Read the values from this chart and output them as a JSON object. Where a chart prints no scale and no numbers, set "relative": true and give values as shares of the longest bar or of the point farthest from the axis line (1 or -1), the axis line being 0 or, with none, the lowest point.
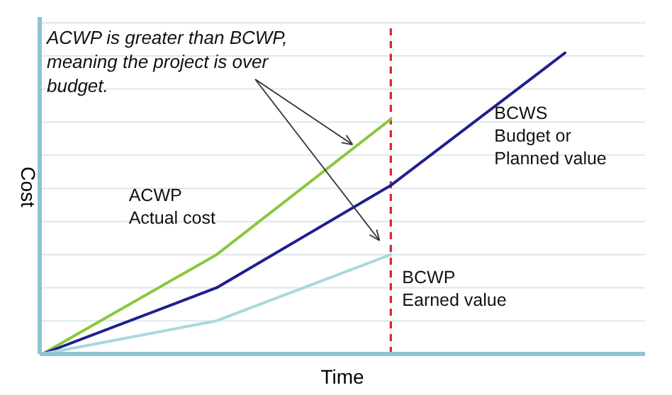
{
  "chart_data": {
    "type": "line",
    "xlabel": "Time",
    "ylabel": "Cost",
    "relative": true,
    "categories": [
      null,
      null,
      null,
      null
    ],
    "grid": "y",
    "marker": "none",
    "line_style": "solid",
    "series": [
      {
        "name": "ACWP\nActual cost",
        "color": "#8cc63f",
        "values": [
          0,
          0.33,
          0.78,
          null
        ]
      },
      {
        "name": "BCWS\nBudget or\nPlanned value",
        "color": "#1f1f8f",
        "values": [
          0,
          0.22,
          0.56,
          1
        ]
      },
      {
        "name": "BCWP\nEarned value",
        "color": "#a8d8dc",
        "values": [
          0,
          0.11,
          0.33,
          null
        ]
      }
    ],
    "annotations": [
      "ACWP is greater than BCWP, meaning the project is over budget."
    ]
  }
}
